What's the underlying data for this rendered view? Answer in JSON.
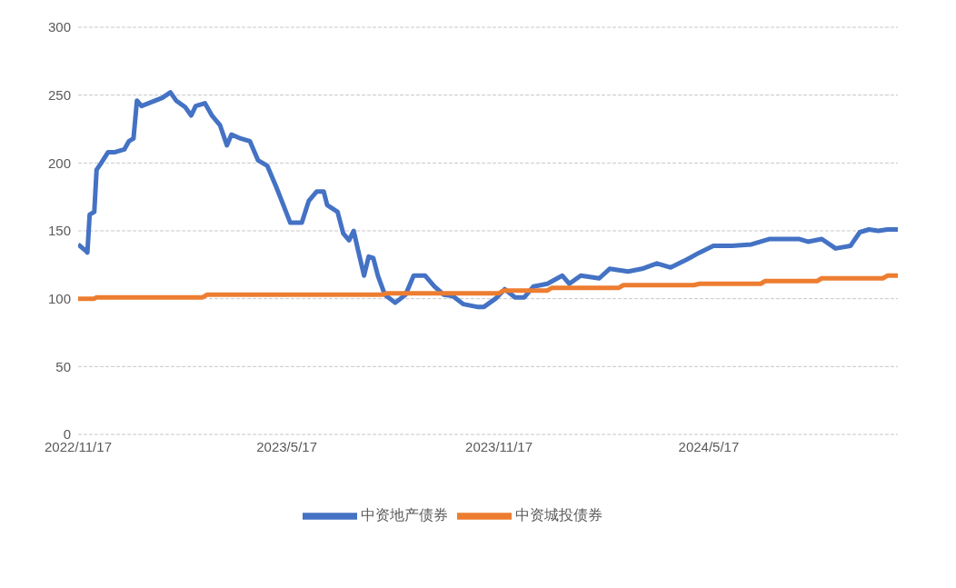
{
  "chart_data": {
    "type": "line",
    "xlim": [
      "2022-11-17",
      "2024-10-28"
    ],
    "xticks": [
      {
        "value": "2022-11-17",
        "label": "2022/11/17"
      },
      {
        "value": "2023-05-17",
        "label": "2023/5/17"
      },
      {
        "value": "2023-11-17",
        "label": "2023/11/17"
      },
      {
        "value": "2024-05-17",
        "label": "2024/5/17"
      }
    ],
    "ylim": [
      0,
      300
    ],
    "yticks": [
      0,
      50,
      100,
      150,
      200,
      250,
      300
    ],
    "grid": "y",
    "legend": "bottom",
    "marker": "none",
    "line_style": "solid",
    "series": [
      {
        "name": "中资地产债券",
        "color": "#4472c4",
        "x": [
          "2022-11-17",
          "2022-11-24",
          "2022-11-25",
          "2022-11-27",
          "2022-12-01",
          "2022-12-03",
          "2022-12-07",
          "2022-12-13",
          "2022-12-19",
          "2022-12-27",
          "2022-12-31",
          "2023-01-04",
          "2023-01-07",
          "2023-01-11",
          "2023-01-17",
          "2023-01-23",
          "2023-01-29",
          "2023-02-05",
          "2023-02-10",
          "2023-02-18",
          "2023-02-23",
          "2023-02-27",
          "2023-03-07",
          "2023-03-13",
          "2023-03-20",
          "2023-03-26",
          "2023-03-30",
          "2023-04-07",
          "2023-04-15",
          "2023-04-22",
          "2023-04-30",
          "2023-05-08",
          "2023-05-14",
          "2023-05-20",
          "2023-05-30",
          "2023-06-05",
          "2023-06-12",
          "2023-06-18",
          "2023-06-21",
          "2023-06-30",
          "2023-07-05",
          "2023-07-10",
          "2023-07-14",
          "2023-07-18",
          "2023-07-23",
          "2023-07-27",
          "2023-07-31",
          "2023-08-04",
          "2023-08-10",
          "2023-08-19",
          "2023-08-28",
          "2023-09-04",
          "2023-09-14",
          "2023-09-22",
          "2023-09-30",
          "2023-10-08",
          "2023-10-17",
          "2023-10-29",
          "2023-11-04",
          "2023-11-14",
          "2023-11-22",
          "2023-12-01",
          "2023-12-09",
          "2023-12-17",
          "2023-12-29",
          "2024-01-11",
          "2024-01-17",
          "2024-01-27",
          "2024-02-12",
          "2024-02-21",
          "2024-03-08",
          "2024-03-20",
          "2024-04-02",
          "2024-04-14",
          "2024-04-26",
          "2024-05-09",
          "2024-05-21",
          "2024-06-06",
          "2024-06-23",
          "2024-07-09",
          "2024-07-21",
          "2024-08-03",
          "2024-08-11",
          "2024-08-23",
          "2024-09-04",
          "2024-09-17",
          "2024-09-25",
          "2024-10-03",
          "2024-10-11",
          "2024-10-19",
          "2024-10-28"
        ],
        "values": [
          140,
          135,
          134,
          162,
          164,
          195,
          200,
          208,
          208,
          210,
          216,
          218,
          246,
          242,
          244,
          246,
          248,
          252,
          246,
          241,
          235,
          242,
          244,
          235,
          228,
          213,
          221,
          218,
          216,
          202,
          198,
          182,
          169,
          156,
          156,
          172,
          179,
          179,
          169,
          164,
          148,
          143,
          150,
          135,
          117,
          131,
          130,
          117,
          103,
          97,
          103,
          117,
          117,
          109,
          103,
          102,
          96,
          94,
          94,
          100,
          107,
          101,
          101,
          109,
          111,
          117,
          111,
          117,
          115,
          122,
          120,
          122,
          126,
          123,
          128,
          134,
          139,
          139,
          140,
          144,
          144,
          144,
          142,
          144,
          137,
          139,
          149,
          151,
          150,
          151,
          151
        ]
      },
      {
        "name": "中资城投债券",
        "color": "#ed7d31",
        "x": [
          "2022-11-17",
          "2022-12-01",
          "2022-12-03",
          "2023-03-05",
          "2023-03-09",
          "2023-08-08",
          "2023-08-12",
          "2023-11-17",
          "2023-11-21",
          "2023-12-29",
          "2024-01-02",
          "2024-02-29",
          "2024-03-04",
          "2024-05-04",
          "2024-05-09",
          "2024-07-01",
          "2024-07-05",
          "2024-08-19",
          "2024-08-23",
          "2024-10-15",
          "2024-10-19",
          "2024-10-28"
        ],
        "values": [
          100,
          100,
          101,
          101,
          103,
          103,
          104,
          104,
          106,
          106,
          108,
          108,
          110,
          110,
          111,
          111,
          113,
          113,
          115,
          115,
          117,
          117
        ]
      }
    ]
  }
}
